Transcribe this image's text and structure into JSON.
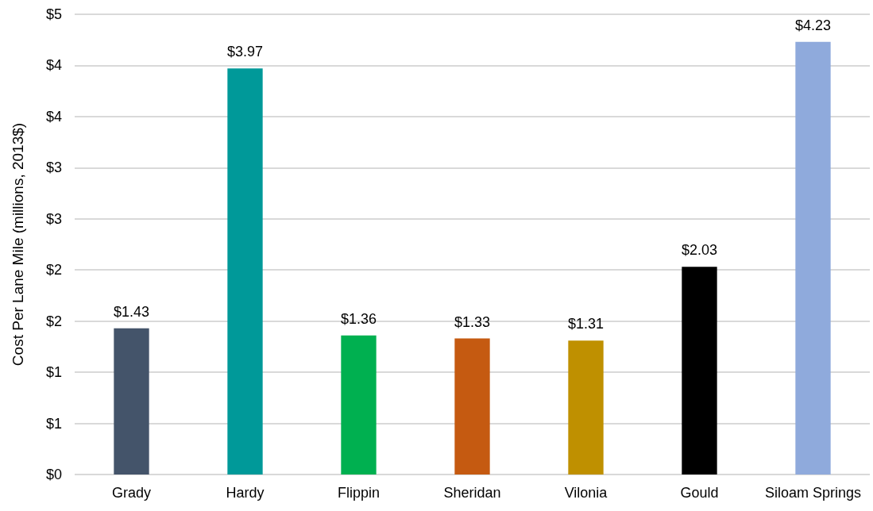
{
  "chart_data": {
    "type": "bar",
    "ylabel": "Cost Per Lane Mile (millions, 2013$)",
    "categories": [
      "Grady",
      "Hardy",
      "Flippin",
      "Sheridan",
      "Vilonia",
      "Gould",
      "Siloam Springs"
    ],
    "values": [
      1.43,
      3.97,
      1.36,
      1.33,
      1.31,
      2.03,
      4.23
    ],
    "colors": [
      "#44546a",
      "#009999",
      "#00b050",
      "#c55a11",
      "#bf9000",
      "#000000",
      "#8faadc"
    ],
    "value_labels": [
      "$1.43",
      "$3.97",
      "$1.36",
      "$1.33",
      "$1.31",
      "$2.03",
      "$4.23"
    ],
    "ylim": [
      0,
      4.5
    ],
    "yticks": [
      {
        "value": 0,
        "label": "$0"
      },
      {
        "value": 0.5,
        "label": "$1"
      },
      {
        "value": 1,
        "label": "$1"
      },
      {
        "value": 1.5,
        "label": "$2"
      },
      {
        "value": 2,
        "label": "$2"
      },
      {
        "value": 2.5,
        "label": "$3"
      },
      {
        "value": 3,
        "label": "$3"
      },
      {
        "value": 3.5,
        "label": "$4"
      },
      {
        "value": 4,
        "label": "$4"
      },
      {
        "value": 4.5,
        "label": "$5"
      }
    ],
    "grid": "y"
  }
}
